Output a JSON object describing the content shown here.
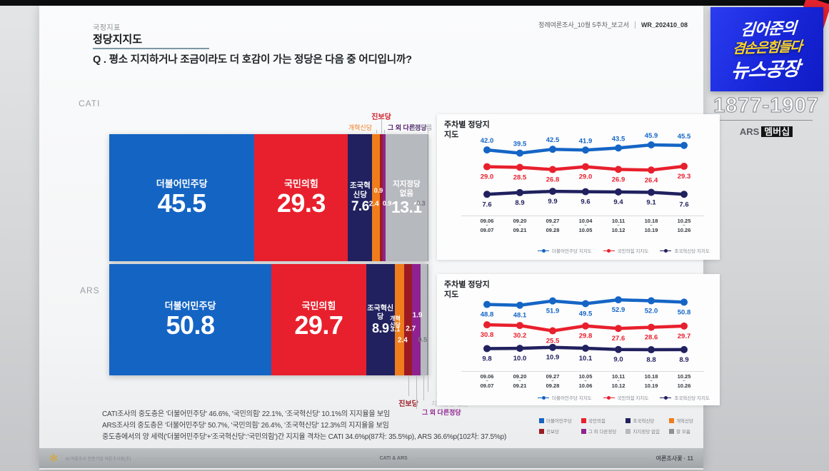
{
  "page": {
    "category": "국정지표",
    "title": "정당지지도",
    "question": "Q . 평소 지지하거나 조금이라도 더 호감이 가는 정당은 다음 중 어디입니까?",
    "report_name": "정례여론조사_10월 5주차_보고서",
    "report_code": "WR_202410_08"
  },
  "groups": {
    "cati": "CATI",
    "ars": "ARS"
  },
  "branding": {
    "logo_line1": "김어준의",
    "logo_line2": "겸손은힘들다",
    "logo_line3": "뉴스공장",
    "phone": "1877-1907",
    "membership_prefix": "ARS",
    "membership_label": "멤버십"
  },
  "parties": [
    {
      "name": "더불어민주당",
      "color": "#1464c3"
    },
    {
      "name": "국민의힘",
      "color": "#e8202d"
    },
    {
      "name": "조국혁신당",
      "color": "#21215f"
    },
    {
      "name": "개혁신당",
      "color": "#f07d1b"
    },
    {
      "name": "진보당",
      "color": "#9c1b23"
    },
    {
      "name": "그 외 다른정당",
      "color": "#8f2290"
    },
    {
      "name": "지지정당 없음",
      "color": "#b6b9be"
    },
    {
      "name": "잘 모름",
      "color": "#8d9197"
    }
  ],
  "chart_data": [
    {
      "type": "bar",
      "group": "CATI",
      "stacked": true,
      "unit": "%",
      "categories": [
        "더불어민주당",
        "국민의힘",
        "조국혁신당",
        "개혁신당",
        "진보당",
        "그 외 다른정당",
        "지지정당 없음",
        "잘 모름"
      ],
      "values": [
        45.5,
        29.3,
        7.6,
        2.4,
        0.9,
        0.9,
        13.1,
        0.3
      ]
    },
    {
      "type": "bar",
      "group": "ARS",
      "stacked": true,
      "unit": "%",
      "categories": [
        "더불어민주당",
        "국민의힘",
        "조국혁신당",
        "개혁신당",
        "진보당",
        "그 외 다른정당",
        "지지정당 없음",
        "잘 모름"
      ],
      "values": [
        50.8,
        29.7,
        8.9,
        3.1,
        2.4,
        2.7,
        1.9,
        0.5
      ]
    },
    {
      "type": "line",
      "group": "CATI",
      "title": "주차별 정당지지도",
      "x": [
        "09.06~09.07",
        "09.20~09.21",
        "09.27~09.28",
        "10.04~10.05",
        "10.11~10.12",
        "10.18~10.19",
        "10.25~10.26"
      ],
      "ylim": [
        0,
        52
      ],
      "legend_position": "bottom-right",
      "series": [
        {
          "name": "더불어민주당 지지도",
          "color": "#1565c5",
          "label_pos": "above",
          "values": [
            42.0,
            39.5,
            42.5,
            41.9,
            43.5,
            45.9,
            45.5
          ]
        },
        {
          "name": "국민의힘 지지도",
          "color": "#e8202d",
          "label_pos": "below",
          "values": [
            29.0,
            28.5,
            26.8,
            29.0,
            26.9,
            26.4,
            29.3
          ]
        },
        {
          "name": "조국혁신당 지지도",
          "color": "#21215f",
          "label_pos": "below",
          "values": [
            7.6,
            8.9,
            9.9,
            9.6,
            9.4,
            9.1,
            7.6
          ]
        }
      ]
    },
    {
      "type": "line",
      "group": "ARS",
      "title": "주차별 정당지지도",
      "x": [
        "09.06~09.07",
        "09.20~09.21",
        "09.27~09.28",
        "10.05~10.06",
        "10.11~10.12",
        "10.18~10.19",
        "10.25~10.26"
      ],
      "ylim": [
        0,
        58
      ],
      "legend_position": "bottom-right",
      "series": [
        {
          "name": "더불어민주당 지지도",
          "color": "#1565c5",
          "label_pos": "below",
          "values": [
            48.8,
            48.1,
            51.9,
            49.5,
            52.9,
            52.0,
            50.8
          ]
        },
        {
          "name": "국민의힘 지지도",
          "color": "#e8202d",
          "label_pos": "below",
          "values": [
            30.8,
            30.2,
            25.5,
            29.8,
            27.6,
            28.6,
            29.7
          ]
        },
        {
          "name": "조국혁신당 지지도",
          "color": "#21215f",
          "label_pos": "below",
          "values": [
            9.8,
            10.0,
            10.9,
            10.1,
            9.0,
            8.8,
            8.9
          ]
        }
      ]
    }
  ],
  "footnotes": [
    "CATI조사의 중도층은 '더불어민주당' 46.6%, '국민의힘' 22.1%, '조국혁신당' 10.1%의 지지율을 보임",
    "ARS조사의 중도층은 '더불어민주당' 50.7%, '국민의힘' 26.4%, '조국혁신당' 12.3%의 지지율을 보임",
    "중도층에서의 양 세력('더불어민주당'+'조국혁신당':'국민의힘')간 지지율 격차는 CATI 34.6%p(87차: 35.5%p), ARS 36.6%p(102차: 37.5%p)"
  ],
  "footer": {
    "left": "AI 여론조사 전문기업 여론조사꽃(주)",
    "center": "CATI & ARS",
    "right": "여론조사꽃 · 11"
  }
}
